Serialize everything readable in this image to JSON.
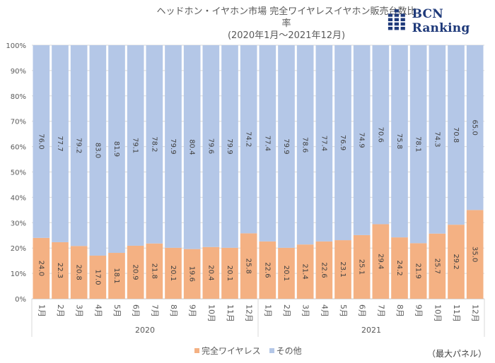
{
  "header": {
    "title_line1": "ヘッドホン・イヤホン市場 完全ワイヤレスイヤホン販売台数比率",
    "title_line2": "(2020年1月～2021年12月)",
    "logo_text": "BCN Ranking"
  },
  "colors": {
    "wireless": "#f4b183",
    "other": "#b4c7e7",
    "logo": "#1f3a7a",
    "grid": "#d9d9d9"
  },
  "legend": {
    "items": [
      {
        "label": "完全ワイヤレス",
        "color": "#f4b183"
      },
      {
        "label": "その他",
        "color": "#b4c7e7"
      }
    ]
  },
  "note": "（最大パネル）",
  "chart_data": {
    "type": "bar",
    "stacked": true,
    "percent": true,
    "title": "ヘッドホン・イヤホン市場 完全ワイヤレスイヤホン販売台数比率 (2020年1月～2021年12月)",
    "xlabel": "",
    "ylabel": "",
    "ylim": [
      0,
      100
    ],
    "yticks": [
      "0%",
      "10%",
      "20%",
      "30%",
      "40%",
      "50%",
      "60%",
      "70%",
      "80%",
      "90%",
      "100%"
    ],
    "grid": true,
    "legend_position": "bottom",
    "categories": [
      "1月",
      "2月",
      "3月",
      "4月",
      "5月",
      "6月",
      "7月",
      "8月",
      "9月",
      "10月",
      "11月",
      "12月",
      "1月",
      "2月",
      "3月",
      "4月",
      "5月",
      "6月",
      "7月",
      "8月",
      "9月",
      "10月",
      "11月",
      "12月"
    ],
    "groups": [
      {
        "label": "2020",
        "count": 12
      },
      {
        "label": "2021",
        "count": 12
      }
    ],
    "series": [
      {
        "name": "完全ワイヤレス",
        "color": "#f4b183",
        "values": [
          24.0,
          22.3,
          20.8,
          17.0,
          18.1,
          20.9,
          21.8,
          20.1,
          19.6,
          20.4,
          20.1,
          25.8,
          22.6,
          20.1,
          21.4,
          22.6,
          23.1,
          25.1,
          29.4,
          24.2,
          21.9,
          25.7,
          29.2,
          35.0
        ]
      },
      {
        "name": "その他",
        "color": "#b4c7e7",
        "values": [
          76.0,
          77.7,
          79.2,
          83.0,
          81.9,
          79.1,
          78.2,
          79.9,
          80.4,
          79.6,
          79.9,
          74.2,
          77.4,
          79.9,
          78.6,
          77.4,
          76.9,
          74.9,
          70.6,
          75.8,
          78.1,
          74.3,
          70.8,
          65.0
        ]
      }
    ]
  }
}
